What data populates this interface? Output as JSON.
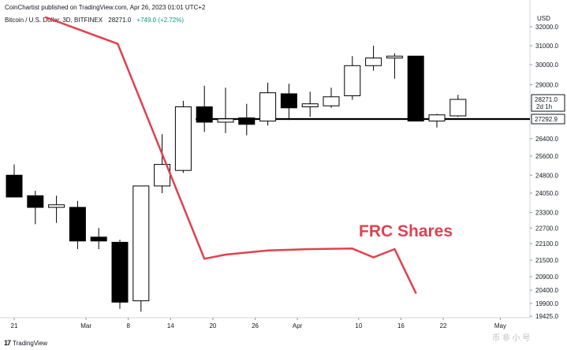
{
  "header": {
    "published": "CoinChartist published on TradingView.com, Apr 26, 2023 01:01 UTC+2",
    "symbol": "Bitcoin / U.S. Dollar, 3D, BITFINEX",
    "last": "28271.0",
    "change": "+749.0 (+2.72%)"
  },
  "footer": {
    "logo_text": "TradingView",
    "watermark": "币 非 小 号"
  },
  "chart_data": {
    "type": "candlestick",
    "currency": "USD",
    "symbol": "BTCUSD",
    "exchange": "BITFINEX",
    "interval": "3D",
    "ylim": [
      19425,
      32000
    ],
    "y_ticks": [
      19425.0,
      19900.0,
      20400.0,
      20900.0,
      21500.0,
      22100.0,
      22700.0,
      23300.0,
      24050.0,
      24800.0,
      25600.0,
      26400.0,
      27292.9,
      28271.0,
      29000.0,
      30000.0,
      31000.0,
      32000.0
    ],
    "x_ticks": [
      {
        "i": 0,
        "label": "21"
      },
      {
        "i": 3.4,
        "label": "Mar"
      },
      {
        "i": 5.4,
        "label": "8"
      },
      {
        "i": 7.4,
        "label": "14"
      },
      {
        "i": 9.4,
        "label": "20"
      },
      {
        "i": 11.4,
        "label": "26"
      },
      {
        "i": 13.4,
        "label": "Apr"
      },
      {
        "i": 16.3,
        "label": "10"
      },
      {
        "i": 18.3,
        "label": "16"
      },
      {
        "i": 20.3,
        "label": "22"
      },
      {
        "i": 23,
        "label": "May"
      }
    ],
    "candles": [
      {
        "o": 24800,
        "h": 25250,
        "l": 23900,
        "c": 23900
      },
      {
        "o": 23950,
        "h": 24150,
        "l": 22850,
        "c": 23500
      },
      {
        "o": 23500,
        "h": 23950,
        "l": 22900,
        "c": 23600
      },
      {
        "o": 23500,
        "h": 23750,
        "l": 21900,
        "c": 22200
      },
      {
        "o": 22350,
        "h": 22700,
        "l": 21900,
        "c": 22200
      },
      {
        "o": 22150,
        "h": 22250,
        "l": 19700,
        "c": 19950
      },
      {
        "o": 20000,
        "h": 24350,
        "l": 19600,
        "c": 24350
      },
      {
        "o": 24350,
        "h": 26600,
        "l": 24050,
        "c": 25250
      },
      {
        "o": 25000,
        "h": 28200,
        "l": 24900,
        "c": 27900
      },
      {
        "o": 27900,
        "h": 28950,
        "l": 26700,
        "c": 27150
      },
      {
        "o": 27150,
        "h": 28850,
        "l": 26650,
        "c": 27300
      },
      {
        "o": 27350,
        "h": 28050,
        "l": 26550,
        "c": 27050
      },
      {
        "o": 27200,
        "h": 29100,
        "l": 27000,
        "c": 28600
      },
      {
        "o": 28550,
        "h": 29050,
        "l": 27250,
        "c": 27850
      },
      {
        "o": 27900,
        "h": 28650,
        "l": 27400,
        "c": 28050
      },
      {
        "o": 27950,
        "h": 28850,
        "l": 27850,
        "c": 28400
      },
      {
        "o": 28450,
        "h": 30450,
        "l": 28250,
        "c": 29950
      },
      {
        "o": 29950,
        "h": 31000,
        "l": 29700,
        "c": 30350
      },
      {
        "o": 30350,
        "h": 30600,
        "l": 29300,
        "c": 30450
      },
      {
        "o": 30450,
        "h": 30450,
        "l": 27200,
        "c": 27200
      },
      {
        "o": 27200,
        "h": 27550,
        "l": 26900,
        "c": 27500
      },
      {
        "o": 27450,
        "h": 28500,
        "l": 27400,
        "c": 28271
      }
    ],
    "hline": {
      "value": 27292.9,
      "label": "27292.9"
    },
    "last_price": {
      "value": 28271.0,
      "label": "28271.0",
      "countdown": "2d 1h"
    },
    "overlay_series": {
      "name": "FRC Shares",
      "color": "#e0414f",
      "points": [
        {
          "i": 1.5,
          "y": 32500
        },
        {
          "i": 4.9,
          "y": 31100
        },
        {
          "i": 9.0,
          "y": 21550
        },
        {
          "i": 10.0,
          "y": 21700
        },
        {
          "i": 12.0,
          "y": 21850
        },
        {
          "i": 14.0,
          "y": 21900
        },
        {
          "i": 16.0,
          "y": 21920
        },
        {
          "i": 17.0,
          "y": 21600
        },
        {
          "i": 18.0,
          "y": 21900
        },
        {
          "i": 19.0,
          "y": 20300
        }
      ]
    }
  }
}
